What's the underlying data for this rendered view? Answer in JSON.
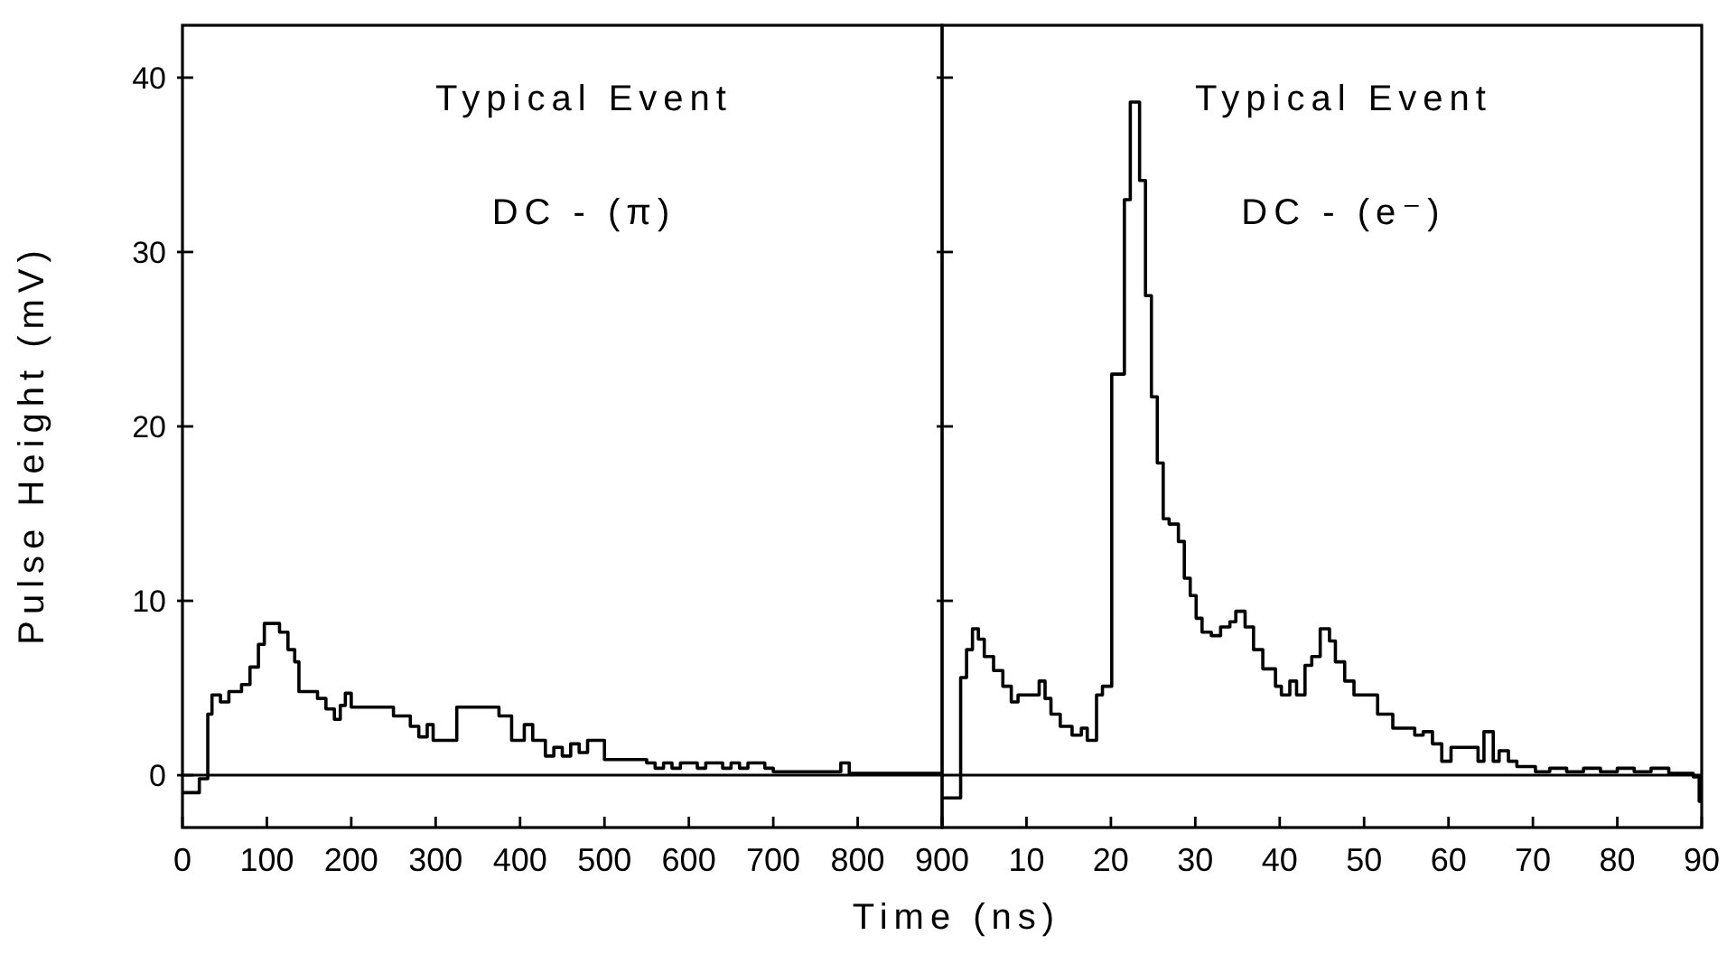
{
  "chart_data": [
    {
      "type": "step",
      "ylabel": "Pulse Height  (mV)",
      "xlabel": "Time   (ns)",
      "annotations": [
        "Typical Event",
        "DC  -  (π)"
      ],
      "x": [
        0,
        20,
        30,
        35,
        45,
        55,
        70,
        80,
        90,
        97,
        115,
        125,
        133,
        138,
        160,
        170,
        180,
        187,
        193,
        200,
        250,
        270,
        280,
        290,
        297,
        325,
        375,
        390,
        405,
        415,
        430,
        440,
        450,
        460,
        470,
        480,
        500,
        550,
        560,
        570,
        580,
        590,
        610,
        620,
        640,
        650,
        660,
        670,
        690,
        700,
        780,
        790,
        900
      ],
      "series": [
        {
          "color": "#000000",
          "values": [
            -1.0,
            -0.2,
            3.5,
            4.6,
            4.2,
            4.8,
            5.2,
            6.2,
            7.5,
            8.7,
            8.2,
            7.2,
            6.5,
            4.8,
            4.4,
            3.8,
            3.2,
            4.0,
            4.7,
            3.9,
            3.4,
            2.8,
            2.2,
            2.9,
            2.0,
            3.9,
            3.4,
            2.0,
            2.9,
            2.0,
            1.1,
            1.6,
            1.1,
            1.8,
            1.3,
            2.0,
            0.9,
            0.7,
            0.4,
            0.7,
            0.4,
            0.7,
            0.4,
            0.7,
            0.4,
            0.7,
            0.4,
            0.7,
            0.4,
            0.2,
            0.7,
            0.1,
            0.1
          ]
        }
      ],
      "xlim": [
        0,
        900
      ],
      "xticks": [
        0,
        100,
        200,
        300,
        400,
        500,
        600,
        700,
        800,
        900
      ],
      "ylim": [
        -3,
        43
      ],
      "yticks": [
        0,
        10,
        20,
        30,
        40
      ],
      "ref_lines": [
        {
          "axis": "y",
          "value": 0
        }
      ]
    },
    {
      "type": "step",
      "annotations": [
        "Typical Event",
        "DC  -  (e⁻)"
      ],
      "x": [
        0,
        2.2,
        2.9,
        3.6,
        4.3,
        5.0,
        6.1,
        7.2,
        8.2,
        9.0,
        11.5,
        12.2,
        12.9,
        14.0,
        15.4,
        16.5,
        17.2,
        18.3,
        19.0,
        20.1,
        21.6,
        22.3,
        23.4,
        24.1,
        24.8,
        25.5,
        26.2,
        26.9,
        28.0,
        28.7,
        29.4,
        30.1,
        30.8,
        31.9,
        33.0,
        34.1,
        34.8,
        35.9,
        36.9,
        38.0,
        39.5,
        40.2,
        41.2,
        42.0,
        43.0,
        43.8,
        44.8,
        45.9,
        46.6,
        47.7,
        48.8,
        51.6,
        53.4,
        56.0,
        57.0,
        58.1,
        59.2,
        60.3,
        63.5,
        64.2,
        65.3,
        66.0,
        67.1,
        68.1,
        70.3,
        72,
        74,
        76,
        78,
        80,
        82,
        84,
        86.1,
        89.0,
        89.7,
        90
      ],
      "series": [
        {
          "color": "#000000",
          "values": [
            -1.3,
            5.6,
            7.2,
            8.4,
            7.8,
            6.8,
            6.0,
            5.1,
            4.2,
            4.6,
            5.4,
            4.4,
            3.5,
            2.8,
            2.3,
            2.7,
            2.0,
            4.6,
            5.1,
            23.0,
            33.0,
            38.6,
            34.1,
            27.5,
            21.7,
            17.9,
            14.7,
            14.4,
            13.4,
            11.3,
            10.3,
            9.0,
            8.2,
            8.0,
            8.5,
            8.8,
            9.4,
            8.5,
            7.2,
            6.1,
            5.1,
            4.6,
            5.4,
            4.6,
            6.3,
            6.8,
            8.4,
            7.7,
            6.5,
            5.4,
            4.6,
            3.5,
            2.7,
            2.3,
            2.5,
            1.8,
            0.8,
            1.6,
            0.8,
            2.5,
            0.8,
            1.4,
            0.8,
            0.5,
            0.2,
            0.4,
            0.2,
            0.4,
            0.2,
            0.4,
            0.2,
            0.4,
            0.1,
            -0.1,
            -1.5,
            -1.5
          ]
        }
      ],
      "xlim": [
        0,
        90
      ],
      "xticks": [
        {
          "value": 0,
          "label": null
        },
        10,
        20,
        30,
        40,
        50,
        60,
        70,
        80,
        90
      ],
      "ylim": [
        -3,
        43
      ],
      "yticks": [
        {
          "value": 10,
          "label": null
        },
        {
          "value": 20,
          "label": null
        },
        {
          "value": 30,
          "label": null
        },
        {
          "value": 40,
          "label": null
        }
      ],
      "tick_labels": "x",
      "ref_lines": [
        {
          "axis": "y",
          "value": 0
        }
      ]
    }
  ]
}
